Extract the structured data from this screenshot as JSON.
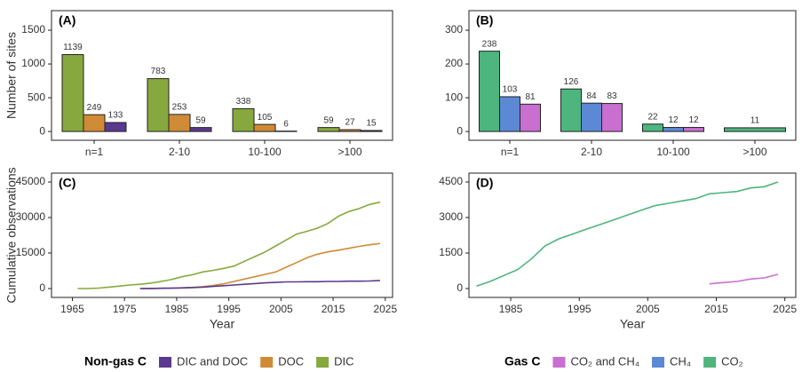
{
  "chart_data": [
    {
      "type": "bar",
      "panel_label": "(A)",
      "ylabel": "Number of sites",
      "legend_title": "Non-gas C",
      "categories": [
        "n=1",
        "2-10",
        "10-100",
        ">100"
      ],
      "series": [
        {
          "name": "DIC",
          "color": "#86a83e",
          "values": [
            1139,
            783,
            338,
            59
          ]
        },
        {
          "name": "DOC",
          "color": "#d08b36",
          "values": [
            249,
            253,
            105,
            27
          ]
        },
        {
          "name": "DIC and DOC",
          "color": "#5a3a8e",
          "values": [
            133,
            59,
            6,
            15
          ]
        }
      ],
      "ylim": [
        -130,
        1790
      ],
      "yticks": [
        0,
        500,
        1000,
        1500
      ]
    },
    {
      "type": "bar",
      "panel_label": "(B)",
      "legend_title": "Gas C",
      "categories": [
        "n=1",
        "2-10",
        "10-100",
        ">100"
      ],
      "series": [
        {
          "name": "CO₂",
          "color": "#4db57d",
          "values": [
            238,
            126,
            22,
            11
          ]
        },
        {
          "name": "CH₄",
          "color": "#5b89d3",
          "values": [
            103,
            84,
            12,
            null
          ]
        },
        {
          "name": "CO₂ and CH₄",
          "color": "#c86fcf",
          "values": [
            81,
            83,
            12,
            null
          ]
        }
      ],
      "ylim": [
        -26,
        358
      ],
      "yticks": [
        0,
        100,
        200,
        300
      ]
    },
    {
      "type": "line",
      "panel_label": "(C)",
      "ylabel": "Cumulative observations",
      "xlabel": "Year",
      "x": [
        1966,
        1968,
        1970,
        1972,
        1974,
        1976,
        1978,
        1980,
        1982,
        1984,
        1986,
        1988,
        1990,
        1992,
        1994,
        1996,
        1998,
        2000,
        2002,
        2004,
        2006,
        2008,
        2010,
        2012,
        2014,
        2016,
        2018,
        2020,
        2022,
        2024
      ],
      "series": [
        {
          "name": "DIC",
          "color": "#86a83e",
          "values": [
            0,
            0,
            200,
            600,
            1000,
            1500,
            1800,
            2300,
            3000,
            3800,
            5000,
            5800,
            7000,
            7700,
            8500,
            9500,
            11500,
            13500,
            15500,
            18000,
            20500,
            23000,
            24200,
            25500,
            27500,
            30500,
            32500,
            33800,
            35500,
            36500
          ]
        },
        {
          "name": "DOC",
          "color": "#d08b36",
          "values": [
            null,
            null,
            null,
            null,
            null,
            null,
            0,
            50,
            100,
            200,
            300,
            500,
            800,
            1300,
            2000,
            3000,
            4000,
            5000,
            6000,
            7000,
            9000,
            11000,
            13000,
            14500,
            15500,
            16200,
            17000,
            17800,
            18500,
            19000
          ]
        },
        {
          "name": "DIC and DOC",
          "color": "#5a3a8e",
          "values": [
            null,
            null,
            null,
            null,
            null,
            null,
            0,
            50,
            100,
            150,
            250,
            400,
            600,
            900,
            1200,
            1500,
            1800,
            2100,
            2400,
            2600,
            2800,
            2800,
            2900,
            2900,
            3000,
            3000,
            3100,
            3100,
            3200,
            3400
          ]
        }
      ],
      "xlim": [
        1961,
        2026.4
      ],
      "xticks": [
        1965,
        1975,
        1985,
        1995,
        2005,
        2015,
        2025
      ],
      "ylim": [
        -3750,
        48750
      ],
      "yticks": [
        0,
        15000,
        30000,
        45000
      ]
    },
    {
      "type": "line",
      "panel_label": "(D)",
      "xlabel": "Year",
      "x": [
        1980,
        1982,
        1984,
        1986,
        1988,
        1990,
        1992,
        1994,
        1996,
        1998,
        2000,
        2002,
        2004,
        2006,
        2008,
        2010,
        2012,
        2014,
        2016,
        2018,
        2020,
        2022,
        2024
      ],
      "series": [
        {
          "name": "CO₂",
          "color": "#4db57d",
          "values": [
            100,
            300,
            550,
            800,
            1250,
            1800,
            2100,
            2300,
            2500,
            2700,
            2900,
            3100,
            3300,
            3500,
            3600,
            3700,
            3800,
            4000,
            4050,
            4100,
            4250,
            4300,
            4500
          ]
        },
        {
          "name": "CO₂ and CH₄",
          "color": "#c86fcf",
          "values": [
            null,
            null,
            null,
            null,
            null,
            null,
            null,
            null,
            null,
            null,
            null,
            null,
            null,
            null,
            null,
            null,
            null,
            200,
            250,
            300,
            400,
            450,
            600
          ]
        }
      ],
      "xlim": [
        1978.9,
        2026.6
      ],
      "xticks": [
        1985,
        1995,
        2005,
        2015,
        2025
      ],
      "ylim": [
        -375,
        4875
      ],
      "yticks": [
        0,
        1500,
        3000,
        4500
      ]
    }
  ]
}
